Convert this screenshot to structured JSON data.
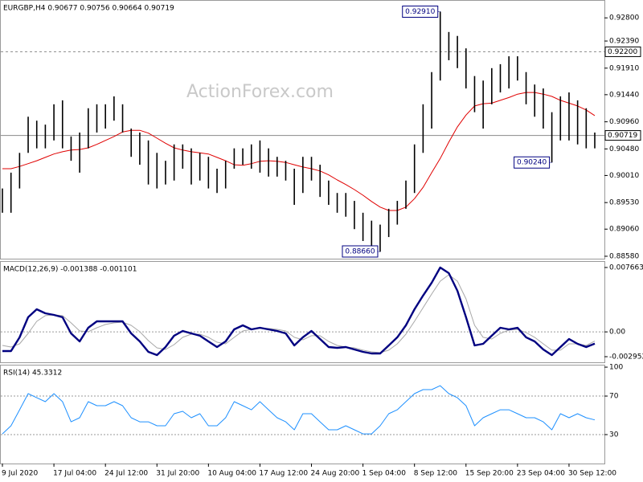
{
  "chart_data": [
    {
      "type": "ohlc",
      "title": "EURGBP,H4  0.90677 0.90756 0.90664 0.90719",
      "watermark": "ActionForex.com",
      "color": "#000000",
      "high": [
        0.8978,
        0.9006,
        0.9041,
        0.9105,
        0.9098,
        0.9091,
        0.9127,
        0.9134,
        0.907,
        0.9077,
        0.912,
        0.9127,
        0.9127,
        0.9141,
        0.9127,
        0.9084,
        0.9077,
        0.9063,
        0.9041,
        0.9027,
        0.9056,
        0.9056,
        0.9049,
        0.9041,
        0.9034,
        0.9013,
        0.9027,
        0.9049,
        0.9049,
        0.9056,
        0.9063,
        0.9049,
        0.9034,
        0.9027,
        0.9013,
        0.9034,
        0.9034,
        0.902,
        0.8992,
        0.897,
        0.897,
        0.8956,
        0.8935,
        0.8921,
        0.8914,
        0.8942,
        0.8956,
        0.8992,
        0.9056,
        0.9127,
        0.9184,
        0.9291,
        0.9255,
        0.9248,
        0.9226,
        0.9177,
        0.9169,
        0.9191,
        0.9198,
        0.9212,
        0.9212,
        0.9184,
        0.9162,
        0.9155,
        0.9113,
        0.9141,
        0.9148,
        0.9134,
        0.912,
        0.9077
      ],
      "low": [
        0.8935,
        0.8935,
        0.8978,
        0.9041,
        0.9049,
        0.9049,
        0.9063,
        0.9049,
        0.9027,
        0.9006,
        0.9049,
        0.9077,
        0.9084,
        0.9098,
        0.9077,
        0.9034,
        0.902,
        0.8985,
        0.8978,
        0.8985,
        0.8992,
        0.9013,
        0.8985,
        0.8992,
        0.8978,
        0.897,
        0.8978,
        0.9013,
        0.902,
        0.9013,
        0.9006,
        0.8999,
        0.8999,
        0.8992,
        0.8949,
        0.897,
        0.8992,
        0.8963,
        0.8949,
        0.8935,
        0.8928,
        0.8906,
        0.8885,
        0.8871,
        0.8866,
        0.8892,
        0.8914,
        0.8942,
        0.897,
        0.9041,
        0.9084,
        0.9169,
        0.9205,
        0.9191,
        0.9155,
        0.9113,
        0.9084,
        0.9127,
        0.9148,
        0.9155,
        0.9169,
        0.9127,
        0.9105,
        0.9084,
        0.9024,
        0.9063,
        0.9063,
        0.9056,
        0.9049,
        0.9049
      ],
      "ma": {
        "color": "#e00000",
        "values": [
          0.9013,
          0.9013,
          0.9017,
          0.9022,
          0.9027,
          0.9033,
          0.9039,
          0.9043,
          0.9046,
          0.9047,
          0.905,
          0.9056,
          0.9063,
          0.907,
          0.9078,
          0.9081,
          0.9081,
          0.9076,
          0.9067,
          0.9058,
          0.905,
          0.9046,
          0.9043,
          0.9041,
          0.9039,
          0.9033,
          0.9027,
          0.902,
          0.9019,
          0.9022,
          0.9026,
          0.9027,
          0.9026,
          0.9024,
          0.902,
          0.9016,
          0.9013,
          0.9009,
          0.9002,
          0.8993,
          0.8985,
          0.8976,
          0.8966,
          0.8955,
          0.8945,
          0.8939,
          0.8939,
          0.8945,
          0.896,
          0.898,
          0.9006,
          0.9031,
          0.906,
          0.9087,
          0.9108,
          0.9124,
          0.9128,
          0.9129,
          0.9134,
          0.9139,
          0.9145,
          0.9148,
          0.9148,
          0.9145,
          0.9141,
          0.9134,
          0.9129,
          0.9124,
          0.9117,
          0.9107
        ]
      },
      "ylim": [
        0.88537,
        0.93102
      ],
      "yticks": [
        {
          "value": 0.928,
          "label": "0.92800"
        },
        {
          "value": 0.9239,
          "label": "0.92390"
        },
        {
          "value": 0.9191,
          "label": "0.91910"
        },
        {
          "value": 0.9144,
          "label": "0.91440"
        },
        {
          "value": 0.9096,
          "label": "0.90960"
        },
        {
          "value": 0.9048,
          "label": "0.90480"
        },
        {
          "value": 0.9001,
          "label": "0.90010"
        },
        {
          "value": 0.8953,
          "label": "0.89530"
        },
        {
          "value": 0.8906,
          "label": "0.89060"
        },
        {
          "value": 0.8858,
          "label": "0.88580"
        }
      ],
      "levels": [
        {
          "value": 0.922,
          "label": "0.92200",
          "dashed": true
        },
        {
          "value": 0.90719,
          "label": "0.90719",
          "dashed": false
        }
      ],
      "annotations": [
        {
          "value": 0.9291,
          "label": "0.92910"
        },
        {
          "value": 0.8866,
          "label": "0.88660"
        },
        {
          "value": 0.9024,
          "label": "0.90240"
        }
      ]
    },
    {
      "type": "macd",
      "title": "MACD(12,26,9) -0.001388 -0.001101",
      "series": [
        {
          "color": "#000080",
          "values": [
            -0.00228,
            -0.00228,
            -0.00065,
            0.00174,
            0.00269,
            0.00221,
            0.00202,
            0.00174,
            -0.00018,
            -0.00113,
            0.00049,
            0.00126,
            0.00126,
            0.00126,
            0.00126,
            -0.00018,
            -0.00113,
            -0.00238,
            -0.00276,
            -0.0018,
            -0.00046,
            0.00011,
            -0.00018,
            -0.00046,
            -0.00113,
            -0.0018,
            -0.00113,
            0.0003,
            0.00078,
            0.0003,
            0.00049,
            0.0003,
            0.00011,
            -0.00018,
            -0.00161,
            -0.00065,
            0.00011,
            -0.00085,
            -0.0018,
            -0.0019,
            -0.0018,
            -0.00209,
            -0.00238,
            -0.00257,
            -0.00257,
            -0.00161,
            -0.00065,
            0.00078,
            0.00269,
            0.00432,
            0.00585,
            0.00766,
            0.00699,
            0.00489,
            0.00174,
            -0.00161,
            -0.00142,
            -0.00046,
            0.00049,
            0.0003,
            0.00049,
            -0.00065,
            -0.00113,
            -0.00209,
            -0.00276,
            -0.0018,
            -0.00085,
            -0.00142,
            -0.0018,
            -0.00139
          ]
        },
        {
          "color": "#a8a8a8",
          "values": [
            -0.00161,
            -0.0018,
            -0.00142,
            -0.00018,
            0.00126,
            0.00193,
            0.00202,
            0.00193,
            0.00107,
            0.00011,
            2e-05,
            0.00049,
            0.00088,
            0.00107,
            0.00116,
            0.00078,
            2e-05,
            -0.00104,
            -0.0019,
            -0.00209,
            -0.00152,
            -0.00065,
            -0.00027,
            -0.00027,
            -0.00065,
            -0.00123,
            -0.00142,
            -0.00065,
            0.00011,
            0.0003,
            0.0004,
            0.0004,
            0.0003,
            0.00011,
            -0.00065,
            -0.00094,
            -0.00046,
            -0.00046,
            -0.00113,
            -0.00161,
            -0.0018,
            -0.0019,
            -0.00218,
            -0.00238,
            -0.00247,
            -0.00218,
            -0.00142,
            -0.00027,
            0.00126,
            0.00288,
            0.00451,
            0.00604,
            0.0068,
            0.00604,
            0.00393,
            0.00078,
            -0.00065,
            -0.00085,
            -0.00018,
            0.00021,
            0.0003,
            -8e-05,
            -0.00065,
            -0.00142,
            -0.00218,
            -0.00218,
            -0.00142,
            -0.00142,
            -0.00161,
            -0.0011
          ]
        }
      ],
      "ylim": [
        -0.00362,
        0.00833
      ],
      "yticks": [
        0.007663,
        {
          "value": 0,
          "label": "0.00"
        },
        -0.002952
      ]
    },
    {
      "type": "rsi",
      "title": "RSI(14) 45.3312",
      "categories": [
        "9 Jul 2020",
        null,
        null,
        null,
        null,
        null,
        "17 Jul 04:00",
        null,
        null,
        null,
        null,
        null,
        "24 Jul 12:00",
        null,
        null,
        null,
        null,
        null,
        "31 Jul 20:00",
        null,
        null,
        null,
        null,
        null,
        "10 Aug 04:00",
        null,
        null,
        null,
        null,
        null,
        "17 Aug 12:00",
        null,
        null,
        null,
        null,
        null,
        "24 Aug 20:00",
        null,
        null,
        null,
        null,
        null,
        "1 Sep 04:00",
        null,
        null,
        null,
        null,
        null,
        "8 Sep 12:00",
        null,
        null,
        null,
        null,
        null,
        "15 Sep 20:00",
        null,
        null,
        null,
        null,
        null,
        "23 Sep 04:00",
        null,
        null,
        null,
        null,
        null,
        "30 Sep 12:00",
        null,
        null,
        null
      ],
      "series": [
        {
          "color": "#1e90ff",
          "values": [
            30.8,
            39.2,
            55.8,
            72.5,
            68.3,
            64.2,
            72.5,
            64.2,
            43.3,
            47.5,
            64.2,
            60,
            60,
            64.2,
            60,
            47.5,
            43.3,
            43.3,
            39.2,
            39.2,
            51.7,
            54.2,
            47.5,
            51.7,
            39.2,
            39.2,
            47.5,
            64.2,
            60,
            55.8,
            64.2,
            55.8,
            47.5,
            43.3,
            35,
            51.7,
            51.7,
            43.3,
            35,
            35,
            39.2,
            35,
            30.8,
            30.8,
            39.2,
            51.7,
            55.8,
            64.2,
            72.5,
            76.7,
            76.7,
            80.8,
            72.5,
            68.3,
            60,
            39.2,
            47.5,
            51.7,
            55.8,
            55.8,
            51.7,
            47.5,
            47.5,
            43.3,
            35,
            51.7,
            47.5,
            51.7,
            47.5,
            45.3
          ]
        }
      ],
      "ylim": [
        0,
        101.7
      ],
      "yticks": [
        100,
        70,
        30
      ],
      "levels": [
        70,
        30
      ]
    }
  ]
}
